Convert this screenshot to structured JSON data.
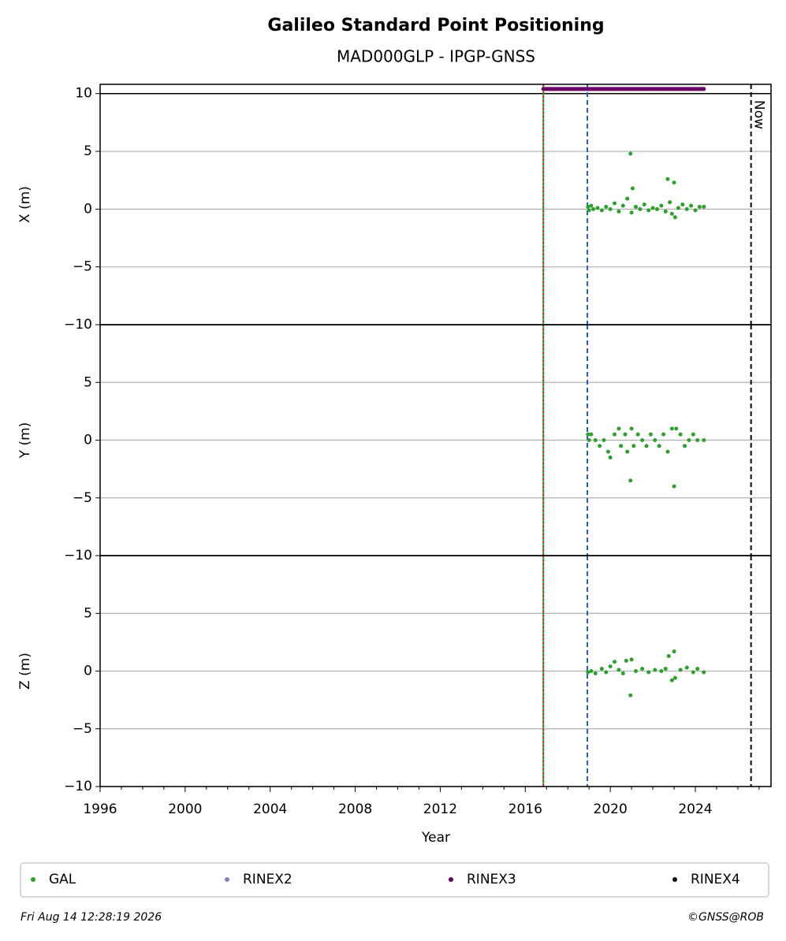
{
  "title": "Galileo Standard Point Positioning",
  "subtitle": "MAD000GLP - IPGP-GNSS",
  "xlabel": "Year",
  "xlim": [
    1996,
    2027.56
  ],
  "xticks": [
    1996,
    2000,
    2004,
    2008,
    2012,
    2016,
    2020,
    2024
  ],
  "xminorticks": [
    1997,
    1998,
    1999,
    2001,
    2002,
    2003,
    2005,
    2006,
    2007,
    2009,
    2010,
    2011,
    2013,
    2014,
    2015,
    2017,
    2018,
    2019,
    2021,
    2022,
    2023,
    2025,
    2026,
    2027
  ],
  "vlines": [
    {
      "x": 2016.85,
      "color": "#2ca02c",
      "style": "solid"
    },
    {
      "x": 2016.85,
      "color": "#d62728",
      "style": "dotted"
    },
    {
      "x": 2018.92,
      "color": "#1f5fbf",
      "style": "dashed"
    },
    {
      "x": 2026.62,
      "color": "#000000",
      "style": "dashed",
      "label": "Now"
    }
  ],
  "chart_data": [
    {
      "type": "scatter",
      "ylabel": "X (m)",
      "ylim": [
        -10,
        10.8
      ],
      "yticks": [
        {
          "value": -10,
          "label": "−10"
        },
        {
          "value": -5,
          "label": "−5"
        },
        0,
        5,
        10
      ],
      "hlines": [
        10
      ],
      "grid": true,
      "series": [
        {
          "color": "#2ca02c",
          "x": [
            2018.95,
            2019.0,
            2019.1,
            2019.2,
            2019.4,
            2019.6,
            2019.8,
            2020.0,
            2020.2,
            2020.4,
            2020.6,
            2020.8,
            2020.95,
            2021.0,
            2021.05,
            2021.2,
            2021.4,
            2021.6,
            2021.8,
            2022.0,
            2022.2,
            2022.4,
            2022.6,
            2022.7,
            2022.8,
            2022.9,
            2023.0,
            2023.05,
            2023.2,
            2023.4,
            2023.6,
            2023.8,
            2024.0,
            2024.2,
            2024.4
          ],
          "values": [
            0.2,
            -0.1,
            0.3,
            0.0,
            0.1,
            -0.1,
            0.2,
            0.0,
            0.5,
            -0.2,
            0.3,
            0.9,
            4.8,
            -0.3,
            1.8,
            0.2,
            0.0,
            0.4,
            -0.1,
            0.1,
            0.0,
            0.3,
            -0.2,
            2.6,
            0.6,
            -0.4,
            2.3,
            -0.7,
            0.1,
            0.4,
            0.0,
            0.3,
            -0.1,
            0.2,
            0.2
          ]
        },
        {
          "color": "#6a0067",
          "line": true,
          "x": [
            2016.85,
            2017.3,
            2017.8,
            2018.3,
            2018.8,
            2019.3,
            2019.8,
            2020.3,
            2020.8,
            2021.3,
            2021.8,
            2022.3,
            2022.8,
            2023.3,
            2023.8,
            2024.4
          ],
          "values": [
            10.4,
            10.4,
            10.4,
            10.4,
            10.4,
            10.4,
            10.4,
            10.4,
            10.4,
            10.4,
            10.4,
            10.4,
            10.4,
            10.4,
            10.4,
            10.4
          ]
        }
      ]
    },
    {
      "type": "scatter",
      "ylabel": "Y (m)",
      "ylim": [
        -10,
        10
      ],
      "yticks": [
        {
          "value": -10,
          "label": "−10"
        },
        {
          "value": -5,
          "label": "−5"
        },
        0,
        5
      ],
      "grid": true,
      "series": [
        {
          "color": "#2ca02c",
          "x": [
            2018.95,
            2019.0,
            2019.1,
            2019.3,
            2019.5,
            2019.7,
            2019.9,
            2020.0,
            2020.2,
            2020.4,
            2020.5,
            2020.7,
            2020.8,
            2020.95,
            2021.0,
            2021.1,
            2021.3,
            2021.5,
            2021.7,
            2021.9,
            2022.1,
            2022.3,
            2022.5,
            2022.7,
            2022.9,
            2023.0,
            2023.1,
            2023.3,
            2023.5,
            2023.7,
            2023.9,
            2024.1,
            2024.4
          ],
          "values": [
            0.5,
            0,
            0.5,
            0,
            -0.5,
            0,
            -1.0,
            -1.5,
            0.5,
            1.0,
            -0.5,
            0.5,
            -1.0,
            -3.5,
            1.0,
            -0.5,
            0.5,
            0,
            -0.5,
            0.5,
            0,
            -0.5,
            0.5,
            -1.0,
            1.0,
            -4.0,
            1.0,
            0.5,
            -0.5,
            0,
            0.5,
            0,
            0
          ]
        }
      ]
    },
    {
      "type": "scatter",
      "ylabel": "Z (m)",
      "ylim": [
        -10,
        10
      ],
      "yticks": [
        {
          "value": -10,
          "label": "−10"
        },
        {
          "value": -5,
          "label": "−5"
        },
        0,
        5
      ],
      "grid": true,
      "series": [
        {
          "color": "#2ca02c",
          "x": [
            2018.95,
            2019.1,
            2019.3,
            2019.6,
            2019.8,
            2020.0,
            2020.2,
            2020.4,
            2020.6,
            2020.75,
            2020.95,
            2021.0,
            2021.2,
            2021.5,
            2021.8,
            2022.1,
            2022.4,
            2022.6,
            2022.75,
            2022.9,
            2023.0,
            2023.05,
            2023.3,
            2023.6,
            2023.9,
            2024.1,
            2024.4
          ],
          "values": [
            -0.1,
            0,
            -0.2,
            0.2,
            -0.1,
            0.4,
            0.8,
            0.1,
            -0.2,
            0.9,
            -2.1,
            1.0,
            0.0,
            0.2,
            -0.1,
            0.1,
            0.0,
            0.2,
            1.3,
            -0.8,
            1.7,
            -0.6,
            0.1,
            0.3,
            -0.1,
            0.2,
            -0.1
          ]
        }
      ]
    }
  ],
  "legend": [
    {
      "name": "GAL",
      "color": "#2ca02c"
    },
    {
      "name": "RINEX2",
      "color": "#8a7fbf"
    },
    {
      "name": "RINEX3",
      "color": "#6a0067"
    },
    {
      "name": "RINEX4",
      "color": "#1a0a1a"
    }
  ],
  "footer": {
    "left": "Fri Aug 14 12:28:19 2026",
    "right": "©GNSS@ROB"
  }
}
